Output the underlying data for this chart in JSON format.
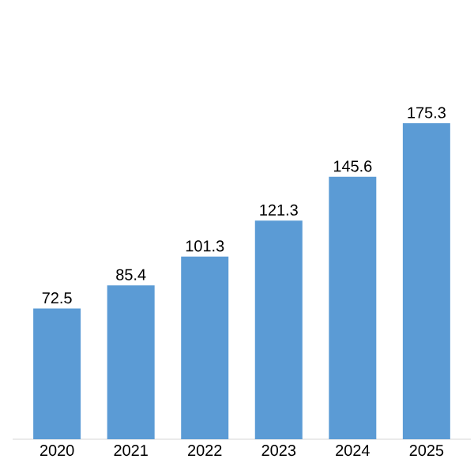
{
  "chart_data": {
    "type": "bar",
    "categories": [
      "2020",
      "2021",
      "2022",
      "2023",
      "2024",
      "2025"
    ],
    "values": [
      72.5,
      85.4,
      101.3,
      121.3,
      145.6,
      175.3
    ],
    "value_labels": [
      "72.5",
      "85.4",
      "101.3",
      "121.3",
      "145.6",
      "175.3"
    ],
    "color": "#5b9bd5"
  }
}
